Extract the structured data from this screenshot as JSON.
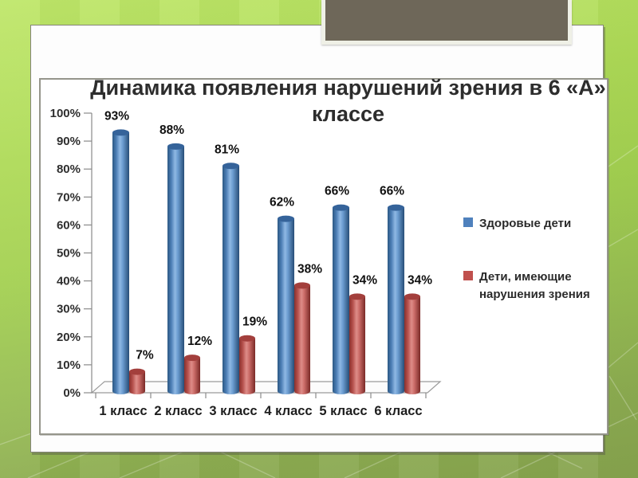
{
  "slide": {
    "title_line1": "Динамика появления нарушений зрения в 6 «А»",
    "title_line2": "классе"
  },
  "chart_data": {
    "type": "bar",
    "style": "3d-cylinder",
    "title": "Динамика появления нарушений зрения в 6 «А» классе",
    "categories": [
      "1 класс",
      "2 класс",
      "3 класс",
      "4 класс",
      "5 класс",
      "6 класс"
    ],
    "series": [
      {
        "name": "Здоровые дети",
        "color": "#4f81bd",
        "values": [
          93,
          88,
          81,
          62,
          66,
          66
        ]
      },
      {
        "name": "Дети, имеющие нарушения зрения",
        "color": "#c0504d",
        "values": [
          7,
          12,
          19,
          38,
          34,
          34
        ]
      }
    ],
    "y_ticks": [
      "100%",
      "90%",
      "80%",
      "70%",
      "60%",
      "50%",
      "40%",
      "30%",
      "20%",
      "10%",
      "0%"
    ],
    "ylim": [
      0,
      100
    ],
    "data_label_suffix": "%",
    "legend_position": "right",
    "grid": false,
    "xlabel": "",
    "ylabel": ""
  },
  "colors": {
    "healthy_bar": "#4f81bd",
    "impaired_bar": "#c0504d",
    "slide_background": "#fdfdfd",
    "page_green": "#a3d051",
    "banner_brown": "#6e6759"
  }
}
